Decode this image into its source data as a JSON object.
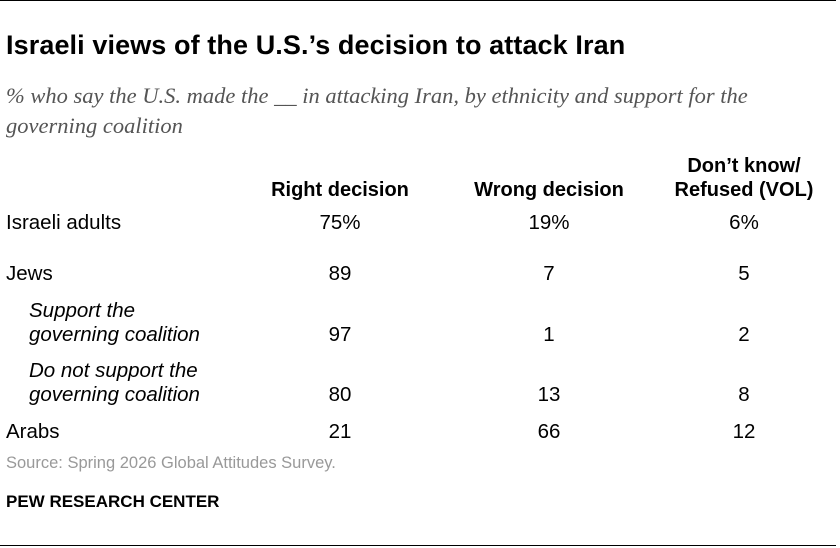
{
  "title": "Israeli views of the U.S.’s decision to attack Iran",
  "subtitle": "% who say the U.S. made the __ in attacking Iran, by ethnicity and support for the governing coalition",
  "chart_data": {
    "type": "table",
    "columns": [
      "Right decision",
      "Wrong decision",
      "Don’t know/ Refused (VOL)"
    ],
    "column_lines": [
      [
        "Right decision"
      ],
      [
        "Wrong decision"
      ],
      [
        "Don’t know/",
        "Refused (VOL)"
      ]
    ],
    "rows": [
      {
        "label_lines": [
          "Israeli adults"
        ],
        "indent": false,
        "values": [
          "75%",
          "19%",
          "6%"
        ]
      },
      {
        "label_lines": [
          "Jews"
        ],
        "indent": false,
        "values": [
          "89",
          "7",
          "5"
        ]
      },
      {
        "label_lines": [
          "Support the",
          "governing coalition"
        ],
        "indent": true,
        "values": [
          "97",
          "1",
          "2"
        ]
      },
      {
        "label_lines": [
          "Do not support the",
          "governing coalition"
        ],
        "indent": true,
        "values": [
          "80",
          "13",
          "8"
        ]
      },
      {
        "label_lines": [
          "Arabs"
        ],
        "indent": false,
        "values": [
          "21",
          "66",
          "12"
        ]
      }
    ]
  },
  "source": "Source: Spring 2026 Global Attitudes Survey.",
  "brand": "PEW RESEARCH CENTER",
  "colors": {
    "text": "#000000",
    "subtitle": "#555555",
    "source": "#999999"
  }
}
